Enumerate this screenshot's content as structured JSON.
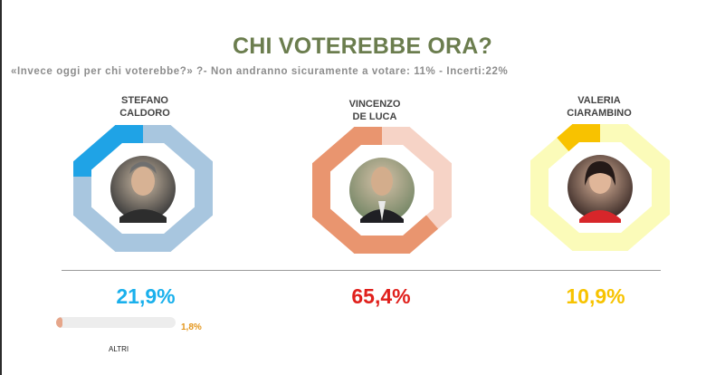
{
  "header": {
    "title": "CHI VOTEREBBE ORA?",
    "subtitle": "«Invece oggi per chi voterebbe?» ?- Non andranno sicuramente a votare: 11%   - Incerti:22%"
  },
  "candidates": [
    {
      "name_line1": "STEFANO",
      "name_line2": "CALDORO",
      "value_label": "21,9%",
      "value_color": "#1ab0ec",
      "ring_fill": "#1fa3e6",
      "ring_track": "#a8c6df",
      "photo": "portrait-man-gray-hair"
    },
    {
      "name_line1": "VINCENZO",
      "name_line2": "DE LUCA",
      "value_label": "65,4%",
      "value_color": "#e0201c",
      "ring_fill": "#e9956f",
      "ring_track": "#f6d3c6",
      "photo": "portrait-man-bald-suit"
    },
    {
      "name_line1": "VALERIA",
      "name_line2": "CIARAMBINO",
      "value_label": "10,9%",
      "value_color": "#f7c300",
      "ring_fill": "#f8c200",
      "ring_track": "#fbfbb9",
      "photo": "portrait-woman-dark-hair"
    }
  ],
  "others": {
    "label": "ALTRI",
    "value_label": "1,8%",
    "value": 1.8,
    "bar_color": "#e6a68a",
    "track_color": "#ededed"
  },
  "chart_data": {
    "type": "donut",
    "title": "CHI VOTEREBBE ORA?",
    "categories": [
      "STEFANO CALDORO",
      "VINCENZO DE LUCA",
      "VALERIA CIARAMBINO",
      "ALTRI"
    ],
    "values": [
      21.9,
      65.4,
      10.9,
      1.8
    ],
    "unit": "%"
  }
}
